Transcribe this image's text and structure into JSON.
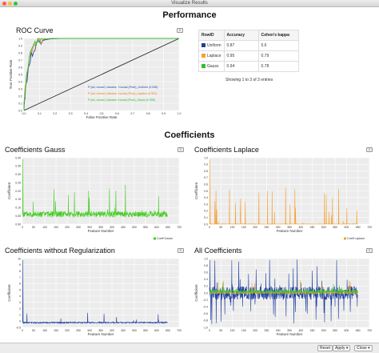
{
  "window": {
    "title": "Visualize Results"
  },
  "headings": {
    "performance": "Performance",
    "coefficients": "Coefficients"
  },
  "roc": {
    "title": "ROC Curve",
    "xlabel": "False Positive Rate",
    "ylabel": "True Positive Rate",
    "xticks": [
      "0.0",
      "0.1",
      "0.2",
      "0.3",
      "0.4",
      "0.5",
      "0.6",
      "0.7",
      "0.8",
      "0.9",
      "1.0"
    ],
    "yticks": [
      "0.0",
      "0.1",
      "0.2",
      "0.3",
      "0.4",
      "0.5",
      "0.6",
      "0.7",
      "0.8",
      "0.9",
      "1.0"
    ],
    "legend": [
      {
        "label": "P (ad, nonad | classes, +nonad,(Prob)_Uniform (0.948)",
        "color": "#1f4fa8"
      },
      {
        "label": "P (ad, nonad | classes,+nonad,(Prob)_Laplace (0.951)",
        "color": "#f08020"
      },
      {
        "label": "P (ad, nonad | classes,+nonad,(Prob)_Gauss (0.955)",
        "color": "#33bb33"
      }
    ]
  },
  "table": {
    "headers": [
      "RowID",
      "Accuracy",
      "Cohen's kappa"
    ],
    "rows": [
      {
        "id": "Uniform",
        "accuracy": "0.87",
        "kappa": "0.6",
        "color": "#1f3f8f"
      },
      {
        "id": "Laplace",
        "accuracy": "0.95",
        "kappa": "0.79",
        "color": "#f5a030"
      },
      {
        "id": "Gauss",
        "accuracy": "0.94",
        "kappa": "0.78",
        "color": "#33bb33"
      }
    ],
    "info": "Showing 1 to 3 of 3 entries"
  },
  "charts": {
    "gauss": {
      "title": "Coefficients Gauss",
      "color": "#44cc22",
      "legend": "Coeff Gauss",
      "yticks": [
        "0.00",
        "0.05",
        "0.10",
        "0.15",
        "0.20",
        "0.25",
        "0.30",
        "0.35",
        "0.40"
      ]
    },
    "laplace": {
      "title": "Coefficients Laplace",
      "color": "#f5a030",
      "legend": "Coeff Laplace",
      "yticks": [
        "0.0",
        "0.1",
        "0.2",
        "0.3",
        "0.4",
        "0.5",
        "0.6",
        "0.7",
        "0.8",
        "0.9",
        "1.0"
      ]
    },
    "noreg": {
      "title": "Coefficients without Regularization",
      "color": "#1f3f9f",
      "yticks": [
        "-0.5",
        "0",
        "1",
        "2",
        "3",
        "4",
        "5",
        "6",
        "7",
        "8",
        "9",
        "10"
      ]
    },
    "all": {
      "title": "All Coefficients",
      "yticks": [
        "-1.0",
        "-0.8",
        "-0.6",
        "-0.4",
        "-0.2",
        "0.0",
        "0.2",
        "0.4",
        "0.6",
        "0.8",
        "1.0"
      ]
    },
    "xlabel": "Feature Number",
    "ylabel": "Coefficient",
    "xticks": [
      "0",
      "50",
      "100",
      "150",
      "200",
      "250",
      "300",
      "350",
      "400",
      "450",
      "500",
      "550",
      "600",
      "650",
      "700"
    ]
  },
  "footer": {
    "reset": "Reset",
    "apply": "Apply",
    "close": "Close"
  }
}
